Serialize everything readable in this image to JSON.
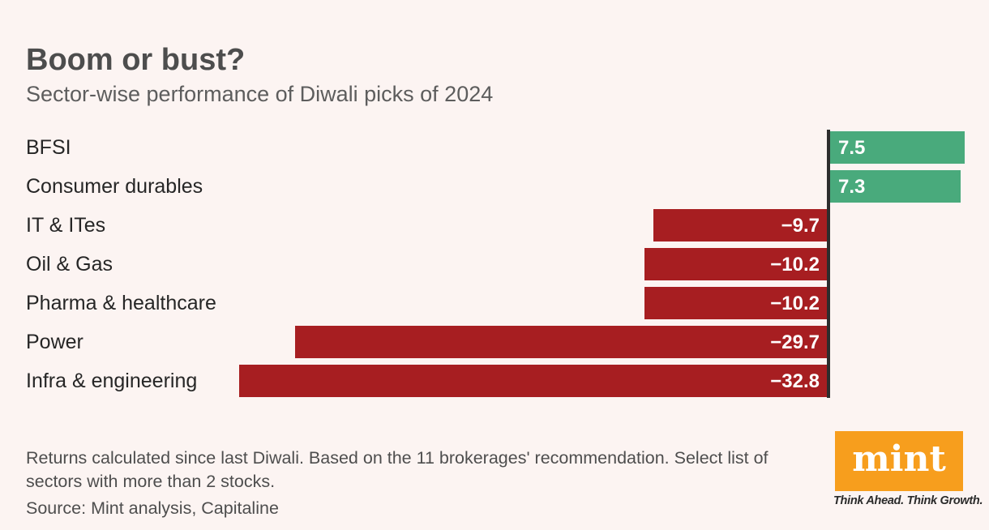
{
  "page": {
    "background": "#fcf4f2"
  },
  "header": {
    "title": "Boom or bust?",
    "subtitle": "Sector-wise performance of Diwali picks of 2024"
  },
  "chart_data": {
    "type": "bar",
    "orientation": "horizontal",
    "categories": [
      "BFSI",
      "Consumer durables",
      "IT & ITes",
      "Oil & Gas",
      "Pharma & healthcare",
      "Power",
      "Infra & engineering"
    ],
    "values": [
      7.5,
      7.3,
      -9.7,
      -10.2,
      -10.2,
      -29.7,
      -32.8
    ],
    "value_labels": [
      "7.5",
      "7.3",
      "−9.7",
      "−10.2",
      "−10.2",
      "−29.7",
      "−32.8"
    ],
    "title": "Boom or bust?",
    "subtitle": "Sector-wise performance of Diwali picks of 2024",
    "xlabel": "",
    "ylabel": "",
    "xlim": [
      -32.8,
      7.5
    ],
    "grid": false,
    "legend": false,
    "value_label_position": "inside, adjacent to zero axis",
    "positive_color": "#49aa7c",
    "negative_color": "#a71e21",
    "axis_color": "#2d2d2d"
  },
  "footer": {
    "note": "Returns calculated since last Diwali. Based on the 11 brokerages' recommendation. Select list of sectors with more than 2 stocks.",
    "source": "Source: Mint analysis, Capitaline"
  },
  "logo": {
    "text": "mint",
    "tagline": "Think Ahead. Think Growth.",
    "background": "#f79e1d",
    "text_color": "#ffffff"
  }
}
